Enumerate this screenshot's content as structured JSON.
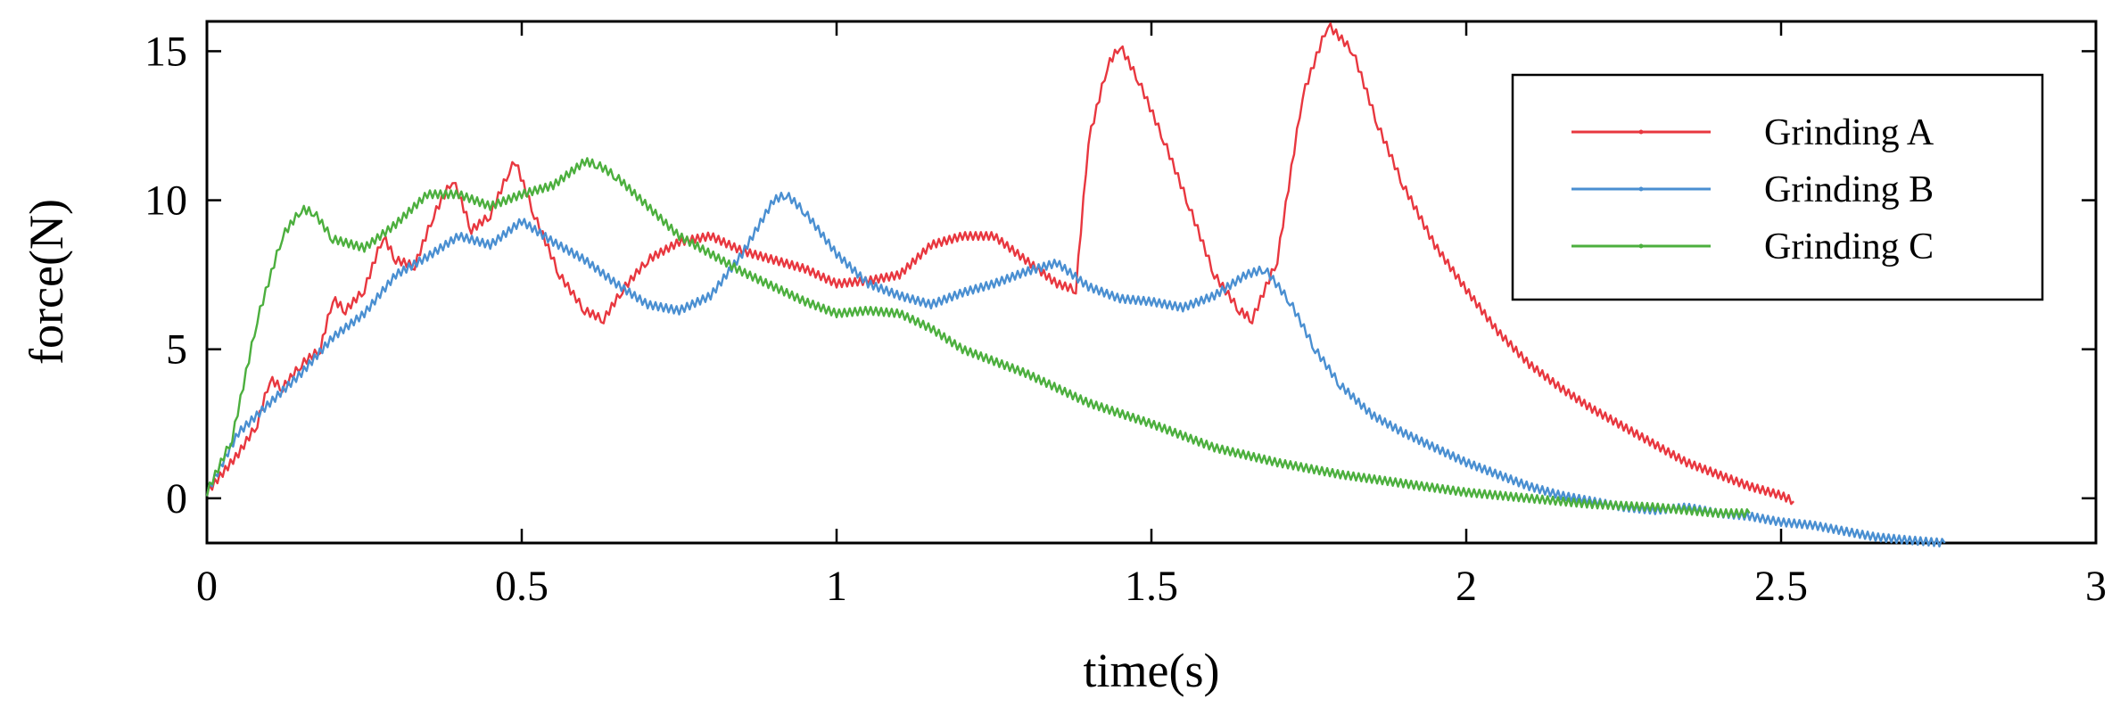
{
  "chart_data": {
    "type": "line",
    "title": "",
    "xlabel": "time(s)",
    "ylabel": "force(N)",
    "xlim": [
      0,
      3
    ],
    "ylim": [
      -1.5,
      16
    ],
    "xticks": [
      0,
      0.5,
      1,
      1.5,
      2,
      2.5,
      3
    ],
    "xtick_labels": [
      "0",
      "0.5",
      "1",
      "1.5",
      "2",
      "2.5",
      "3"
    ],
    "yticks": [
      0,
      5,
      10,
      15
    ],
    "ytick_labels": [
      "0",
      "5",
      "10",
      "15"
    ],
    "grid": false,
    "legend_position": "top-right",
    "series": [
      {
        "name": "Grinding A",
        "color": "#e8373f",
        "x": [
          0,
          0.05,
          0.08,
          0.1,
          0.12,
          0.15,
          0.18,
          0.2,
          0.22,
          0.25,
          0.28,
          0.3,
          0.33,
          0.36,
          0.39,
          0.4,
          0.42,
          0.45,
          0.48,
          0.49,
          0.52,
          0.56,
          0.6,
          0.63,
          0.66,
          0.7,
          0.75,
          0.8,
          0.85,
          0.9,
          0.95,
          1.0,
          1.05,
          1.1,
          1.15,
          1.2,
          1.25,
          1.3,
          1.35,
          1.38,
          1.4,
          1.43,
          1.45,
          1.48,
          1.52,
          1.56,
          1.6,
          1.64,
          1.66,
          1.7,
          1.74,
          1.78,
          1.82,
          1.86,
          1.9,
          1.95,
          2.0,
          2.05,
          2.1,
          2.15,
          2.2,
          2.25,
          2.3,
          2.35,
          2.4,
          2.45,
          2.5,
          2.52
        ],
        "values": [
          0.2,
          1.5,
          2.5,
          4.0,
          3.7,
          4.5,
          5.0,
          6.7,
          6.3,
          7.0,
          8.8,
          8.0,
          7.8,
          9.5,
          10.7,
          10.2,
          9.0,
          9.5,
          11.0,
          11.3,
          9.5,
          7.5,
          6.3,
          6.0,
          7.0,
          8.0,
          8.6,
          8.8,
          8.3,
          8.0,
          7.7,
          7.2,
          7.3,
          7.5,
          8.5,
          8.8,
          8.8,
          8.0,
          7.2,
          7.0,
          12.0,
          14.5,
          15.2,
          14.0,
          12.0,
          9.8,
          7.5,
          6.3,
          6.0,
          8.0,
          13.5,
          15.9,
          15.0,
          12.5,
          10.5,
          8.5,
          7.0,
          5.6,
          4.5,
          3.7,
          3.0,
          2.4,
          1.8,
          1.2,
          0.8,
          0.4,
          0.1,
          -0.1
        ]
      },
      {
        "name": "Grinding B",
        "color": "#4a8fd1",
        "x": [
          0,
          0.05,
          0.1,
          0.15,
          0.2,
          0.25,
          0.3,
          0.35,
          0.4,
          0.45,
          0.5,
          0.55,
          0.6,
          0.65,
          0.7,
          0.75,
          0.8,
          0.85,
          0.9,
          0.92,
          0.95,
          1.0,
          1.05,
          1.1,
          1.15,
          1.2,
          1.25,
          1.3,
          1.35,
          1.4,
          1.45,
          1.5,
          1.55,
          1.6,
          1.65,
          1.68,
          1.72,
          1.76,
          1.8,
          1.85,
          1.9,
          1.95,
          2.0,
          2.05,
          2.1,
          2.15,
          2.2,
          2.25,
          2.3,
          2.35,
          2.4,
          2.45,
          2.5,
          2.55,
          2.6,
          2.65,
          2.7,
          2.76
        ],
        "values": [
          0.2,
          2.2,
          3.2,
          4.2,
          5.4,
          6.2,
          7.5,
          8.1,
          8.8,
          8.5,
          9.3,
          8.6,
          8.0,
          7.2,
          6.5,
          6.3,
          6.8,
          8.2,
          10.0,
          10.2,
          9.6,
          8.2,
          7.2,
          6.8,
          6.5,
          6.9,
          7.2,
          7.6,
          7.9,
          7.1,
          6.7,
          6.6,
          6.4,
          6.8,
          7.5,
          7.7,
          6.6,
          5.0,
          3.8,
          2.8,
          2.2,
          1.7,
          1.2,
          0.8,
          0.4,
          0.1,
          -0.1,
          -0.3,
          -0.4,
          -0.3,
          -0.5,
          -0.6,
          -0.8,
          -0.9,
          -1.1,
          -1.3,
          -1.4,
          -1.5
        ]
      },
      {
        "name": "Grinding C",
        "color": "#4caf3e",
        "x": [
          0,
          0.04,
          0.08,
          0.12,
          0.15,
          0.17,
          0.2,
          0.25,
          0.3,
          0.35,
          0.4,
          0.45,
          0.5,
          0.55,
          0.6,
          0.62,
          0.65,
          0.7,
          0.75,
          0.8,
          0.85,
          0.9,
          0.95,
          1.0,
          1.05,
          1.1,
          1.15,
          1.2,
          1.3,
          1.4,
          1.5,
          1.6,
          1.7,
          1.8,
          1.9,
          2.0,
          2.1,
          2.2,
          2.3,
          2.4,
          2.45
        ],
        "values": [
          0.2,
          2.0,
          6.0,
          8.8,
          9.7,
          9.6,
          8.7,
          8.4,
          9.2,
          10.2,
          10.2,
          9.8,
          10.2,
          10.5,
          11.3,
          11.2,
          10.8,
          9.8,
          8.8,
          8.2,
          7.6,
          7.1,
          6.6,
          6.2,
          6.3,
          6.2,
          5.7,
          5.0,
          4.2,
          3.2,
          2.5,
          1.7,
          1.2,
          0.8,
          0.5,
          0.2,
          0.0,
          -0.2,
          -0.3,
          -0.5,
          -0.5
        ]
      }
    ]
  }
}
